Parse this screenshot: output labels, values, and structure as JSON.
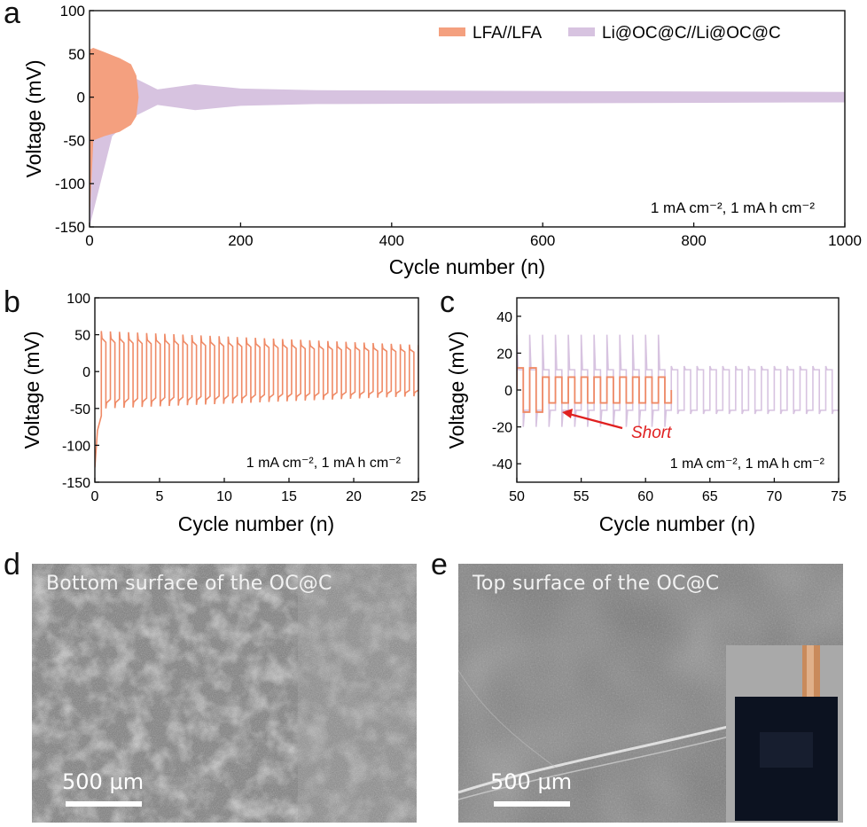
{
  "colors": {
    "lfa": "#f4a07f",
    "lfa_line": "#ef8a66",
    "li": "#d7c3e0",
    "short": "#e02020"
  },
  "chart_data": [
    {
      "panel": "a",
      "type": "line",
      "xlabel": "Cycle number (n)",
      "ylabel": "Voltage (mV)",
      "xlim": [
        0,
        1000
      ],
      "ylim": [
        -150,
        100
      ],
      "x_ticks": [
        "0",
        "200",
        "400",
        "600",
        "800",
        "1000"
      ],
      "y_ticks": [
        "100",
        "50",
        "0",
        "-50",
        "-100",
        "-150"
      ],
      "annotation": "1 mA cm⁻², 1 mA h cm⁻²",
      "legend": "top-right",
      "series": [
        {
          "name": "LFA//LFA",
          "envelope_x": [
            0,
            5,
            20,
            40,
            55,
            62,
            65
          ],
          "upper": [
            55,
            57,
            52,
            45,
            38,
            25,
            0
          ],
          "lower": [
            -145,
            -50,
            -45,
            -40,
            -32,
            -22,
            0
          ]
        },
        {
          "name": "Li@OC@C//Li@OC@C",
          "envelope_x": [
            0,
            30,
            60,
            90,
            140,
            200,
            300,
            1000
          ],
          "upper": [
            50,
            40,
            22,
            9,
            15,
            10,
            8,
            6
          ],
          "lower": [
            -150,
            -45,
            -22,
            -9,
            -15,
            -10,
            -8,
            -6
          ]
        }
      ]
    },
    {
      "panel": "b",
      "type": "line",
      "xlabel": "Cycle number (n)",
      "ylabel": "Voltage (mV)",
      "xlim": [
        0,
        25
      ],
      "ylim": [
        -150,
        100
      ],
      "x_ticks": [
        "0",
        "5",
        "10",
        "15",
        "20",
        "25"
      ],
      "y_ticks": [
        "100",
        "50",
        "0",
        "-50",
        "-100",
        "-150"
      ],
      "annotation": "1 mA cm⁻², 1 mA h cm⁻²",
      "series": [
        {
          "name": "",
          "cycles_start": 0.5,
          "cycles_end": 25,
          "period": 0.7,
          "upper_start": 55,
          "upper_end": 36,
          "lower_start": -50,
          "lower_end": -33
        }
      ]
    },
    {
      "panel": "c",
      "type": "line",
      "xlabel": "Cycle number (n)",
      "ylabel": "Voltage (mV)",
      "xlim": [
        50,
        75
      ],
      "ylim": [
        -50,
        50
      ],
      "x_ticks": [
        "50",
        "55",
        "60",
        "65",
        "70",
        "75"
      ],
      "y_ticks": [
        "40",
        "20",
        "0",
        "-20",
        "-40"
      ],
      "annotation": "1 mA cm⁻², 1 mA h cm⁻²",
      "short_label": "Short",
      "series": [
        {
          "name": "",
          "x_start": 50,
          "x_end": 62,
          "upper": 12,
          "lower": -12,
          "plateau": 7
        },
        {
          "name": "",
          "x_start": 50,
          "x_end": 75,
          "spike_upper": 30,
          "spike_lower": -20,
          "plateau": 11
        }
      ]
    }
  ],
  "panels": {
    "a": "a",
    "b": "b",
    "c": "c",
    "d": "d",
    "e": "e"
  },
  "sem_d": {
    "caption": "Bottom surface of the OC@C",
    "scale": "500 μm"
  },
  "sem_e": {
    "caption": "Top surface of the OC@C",
    "scale": "500 μm"
  }
}
